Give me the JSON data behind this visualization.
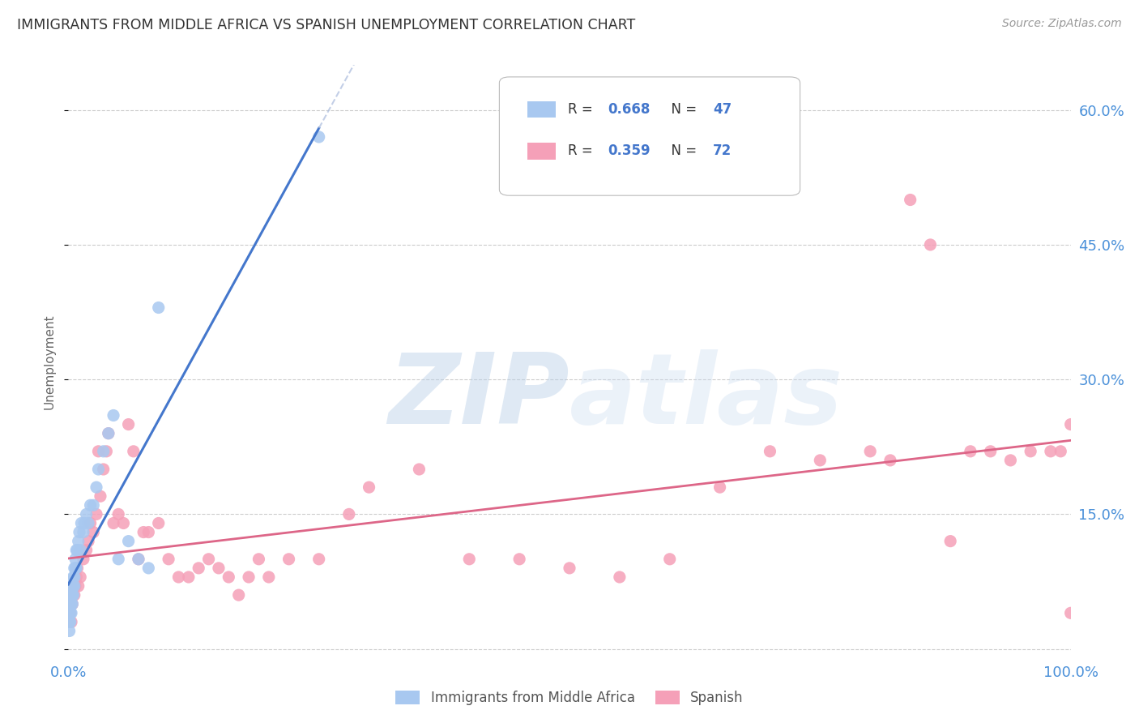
{
  "title": "IMMIGRANTS FROM MIDDLE AFRICA VS SPANISH UNEMPLOYMENT CORRELATION CHART",
  "source": "Source: ZipAtlas.com",
  "ylabel": "Unemployment",
  "legend_label_blue": "Immigrants from Middle Africa",
  "legend_label_pink": "Spanish",
  "watermark_zip": "ZIP",
  "watermark_atlas": "atlas",
  "blue_color": "#a8c8f0",
  "pink_color": "#f5a0b8",
  "trend_blue_color": "#4477cc",
  "trend_pink_color": "#dd6688",
  "trend_blue_dash_color": "#aabbdd",
  "background_color": "#ffffff",
  "grid_color": "#cccccc",
  "title_color": "#333333",
  "axis_tick_color": "#4a90d9",
  "legend_r_color": "#333333",
  "legend_val_color": "#4477cc",
  "legend_n_color": "#4477cc",
  "right_tick_color": "#4a90d9",
  "blue_scatter_x": [
    0.001,
    0.001,
    0.001,
    0.001,
    0.002,
    0.002,
    0.002,
    0.002,
    0.003,
    0.003,
    0.003,
    0.003,
    0.004,
    0.004,
    0.004,
    0.005,
    0.005,
    0.005,
    0.006,
    0.006,
    0.006,
    0.007,
    0.007,
    0.008,
    0.008,
    0.009,
    0.01,
    0.011,
    0.012,
    0.013,
    0.015,
    0.016,
    0.018,
    0.02,
    0.022,
    0.025,
    0.028,
    0.03,
    0.035,
    0.04,
    0.045,
    0.05,
    0.06,
    0.07,
    0.08,
    0.09,
    0.25
  ],
  "blue_scatter_y": [
    0.03,
    0.04,
    0.05,
    0.02,
    0.04,
    0.03,
    0.05,
    0.06,
    0.04,
    0.06,
    0.05,
    0.07,
    0.05,
    0.07,
    0.06,
    0.06,
    0.08,
    0.07,
    0.07,
    0.09,
    0.08,
    0.09,
    0.1,
    0.09,
    0.11,
    0.11,
    0.12,
    0.13,
    0.11,
    0.14,
    0.13,
    0.14,
    0.15,
    0.14,
    0.16,
    0.16,
    0.18,
    0.2,
    0.22,
    0.24,
    0.26,
    0.1,
    0.12,
    0.1,
    0.09,
    0.38,
    0.57
  ],
  "pink_scatter_x": [
    0.001,
    0.001,
    0.002,
    0.002,
    0.003,
    0.003,
    0.004,
    0.004,
    0.005,
    0.006,
    0.007,
    0.008,
    0.009,
    0.01,
    0.012,
    0.015,
    0.018,
    0.02,
    0.022,
    0.025,
    0.028,
    0.03,
    0.032,
    0.035,
    0.038,
    0.04,
    0.045,
    0.05,
    0.055,
    0.06,
    0.065,
    0.07,
    0.075,
    0.08,
    0.09,
    0.1,
    0.11,
    0.12,
    0.13,
    0.14,
    0.15,
    0.16,
    0.17,
    0.18,
    0.19,
    0.2,
    0.22,
    0.25,
    0.28,
    0.3,
    0.35,
    0.4,
    0.45,
    0.5,
    0.55,
    0.6,
    0.65,
    0.7,
    0.75,
    0.8,
    0.82,
    0.84,
    0.86,
    0.88,
    0.9,
    0.92,
    0.94,
    0.96,
    0.98,
    0.99,
    1.0,
    1.0
  ],
  "pink_scatter_y": [
    0.04,
    0.05,
    0.04,
    0.06,
    0.05,
    0.03,
    0.06,
    0.05,
    0.07,
    0.06,
    0.07,
    0.08,
    0.09,
    0.07,
    0.08,
    0.1,
    0.11,
    0.12,
    0.14,
    0.13,
    0.15,
    0.22,
    0.17,
    0.2,
    0.22,
    0.24,
    0.14,
    0.15,
    0.14,
    0.25,
    0.22,
    0.1,
    0.13,
    0.13,
    0.14,
    0.1,
    0.08,
    0.08,
    0.09,
    0.1,
    0.09,
    0.08,
    0.06,
    0.08,
    0.1,
    0.08,
    0.1,
    0.1,
    0.15,
    0.18,
    0.2,
    0.1,
    0.1,
    0.09,
    0.08,
    0.1,
    0.18,
    0.22,
    0.21,
    0.22,
    0.21,
    0.5,
    0.45,
    0.12,
    0.22,
    0.22,
    0.21,
    0.22,
    0.22,
    0.22,
    0.25,
    0.04
  ],
  "ylim_min": -0.01,
  "ylim_max": 0.65,
  "xlim_min": 0.0,
  "xlim_max": 1.0
}
